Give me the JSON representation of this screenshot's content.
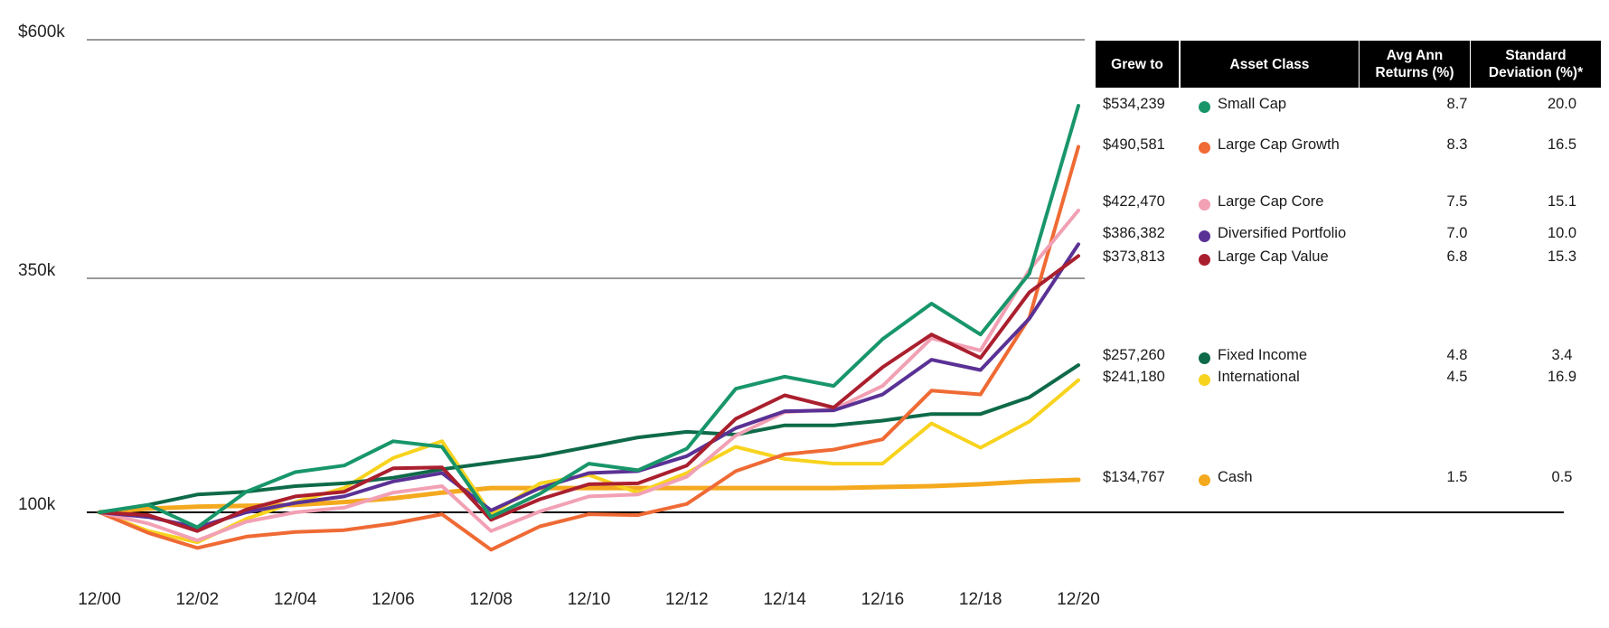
{
  "chart_data": {
    "type": "line",
    "y_tick_labels": [
      "$600k",
      "350k",
      "100k"
    ],
    "y_ticks": [
      600000,
      350000,
      100000
    ],
    "x_tick_labels": [
      "12/00",
      "12/02",
      "12/04",
      "12/06",
      "12/08",
      "12/10",
      "12/12",
      "12/14",
      "12/16",
      "12/18",
      "12/20"
    ],
    "x_range": [
      2000,
      2020
    ],
    "y_range": [
      50000,
      620000
    ],
    "series": [
      {
        "name": "Small Cap",
        "color": "#18966a",
        "grew_to": "$534,239",
        "avg_return": "8.7",
        "std_dev": "20.0",
        "points": [
          [
            2000,
            100000
          ],
          [
            2001,
            108000
          ],
          [
            2002,
            84000
          ],
          [
            2003,
            122000
          ],
          [
            2004,
            143000
          ],
          [
            2005,
            150000
          ],
          [
            2006,
            176000
          ],
          [
            2007,
            170000
          ],
          [
            2008,
            95000
          ],
          [
            2009,
            120000
          ],
          [
            2010,
            152000
          ],
          [
            2011,
            145000
          ],
          [
            2012,
            168000
          ],
          [
            2013,
            232000
          ],
          [
            2014,
            245000
          ],
          [
            2015,
            235000
          ],
          [
            2016,
            285000
          ],
          [
            2017,
            323000
          ],
          [
            2018,
            290000
          ],
          [
            2019,
            355000
          ],
          [
            2020,
            534239
          ]
        ]
      },
      {
        "name": "Large Cap Growth",
        "color": "#ef6a34",
        "grew_to": "$490,581",
        "avg_return": "8.3",
        "std_dev": "16.5",
        "points": [
          [
            2000,
            100000
          ],
          [
            2001,
            78000
          ],
          [
            2002,
            62000
          ],
          [
            2003,
            74000
          ],
          [
            2004,
            79000
          ],
          [
            2005,
            81000
          ],
          [
            2006,
            88000
          ],
          [
            2007,
            98000
          ],
          [
            2008,
            60000
          ],
          [
            2009,
            85000
          ],
          [
            2010,
            98000
          ],
          [
            2011,
            97000
          ],
          [
            2012,
            109000
          ],
          [
            2013,
            144000
          ],
          [
            2014,
            162000
          ],
          [
            2015,
            167000
          ],
          [
            2016,
            178000
          ],
          [
            2017,
            230000
          ],
          [
            2018,
            226000
          ],
          [
            2019,
            308000
          ],
          [
            2020,
            490581
          ]
        ]
      },
      {
        "name": "Large Cap Core",
        "color": "#f2a0b4",
        "grew_to": "$422,470",
        "avg_return": "7.5",
        "std_dev": "15.1",
        "points": [
          [
            2000,
            100000
          ],
          [
            2001,
            88000
          ],
          [
            2002,
            70000
          ],
          [
            2003,
            90000
          ],
          [
            2004,
            100000
          ],
          [
            2005,
            105000
          ],
          [
            2006,
            121000
          ],
          [
            2007,
            128000
          ],
          [
            2008,
            80000
          ],
          [
            2009,
            101000
          ],
          [
            2010,
            117000
          ],
          [
            2011,
            119000
          ],
          [
            2012,
            138000
          ],
          [
            2013,
            182000
          ],
          [
            2014,
            207000
          ],
          [
            2015,
            210000
          ],
          [
            2016,
            235000
          ],
          [
            2017,
            286000
          ],
          [
            2018,
            273000
          ],
          [
            2019,
            359000
          ],
          [
            2020,
            422470
          ]
        ]
      },
      {
        "name": "Diversified Portfolio",
        "color": "#5a3195",
        "grew_to": "$386,382",
        "avg_return": "7.0",
        "std_dev": "10.0",
        "points": [
          [
            2000,
            100000
          ],
          [
            2001,
            95000
          ],
          [
            2002,
            84000
          ],
          [
            2003,
            100000
          ],
          [
            2004,
            110000
          ],
          [
            2005,
            117000
          ],
          [
            2006,
            133000
          ],
          [
            2007,
            142000
          ],
          [
            2008,
            102000
          ],
          [
            2009,
            126000
          ],
          [
            2010,
            142000
          ],
          [
            2011,
            144000
          ],
          [
            2012,
            160000
          ],
          [
            2013,
            190000
          ],
          [
            2014,
            208000
          ],
          [
            2015,
            209000
          ],
          [
            2016,
            226000
          ],
          [
            2017,
            263000
          ],
          [
            2018,
            252000
          ],
          [
            2019,
            307000
          ],
          [
            2020,
            386382
          ]
        ]
      },
      {
        "name": "Large Cap Value",
        "color": "#aa1f2e",
        "grew_to": "$373,813",
        "avg_return": "6.8",
        "std_dev": "15.3",
        "points": [
          [
            2000,
            100000
          ],
          [
            2001,
            97000
          ],
          [
            2002,
            80000
          ],
          [
            2003,
            103000
          ],
          [
            2004,
            117000
          ],
          [
            2005,
            122000
          ],
          [
            2006,
            147000
          ],
          [
            2007,
            148000
          ],
          [
            2008,
            92000
          ],
          [
            2009,
            114000
          ],
          [
            2010,
            130000
          ],
          [
            2011,
            131000
          ],
          [
            2012,
            150000
          ],
          [
            2013,
            200000
          ],
          [
            2014,
            225000
          ],
          [
            2015,
            212000
          ],
          [
            2016,
            255000
          ],
          [
            2017,
            290000
          ],
          [
            2018,
            265000
          ],
          [
            2019,
            335000
          ],
          [
            2020,
            373813
          ]
        ]
      },
      {
        "name": "Fixed Income",
        "color": "#0e6a48",
        "grew_to": "$257,260",
        "avg_return": "4.8",
        "std_dev": "3.4",
        "points": [
          [
            2000,
            100000
          ],
          [
            2001,
            108000
          ],
          [
            2002,
            119000
          ],
          [
            2003,
            122000
          ],
          [
            2004,
            128000
          ],
          [
            2005,
            131000
          ],
          [
            2006,
            137000
          ],
          [
            2007,
            146000
          ],
          [
            2008,
            153000
          ],
          [
            2009,
            160000
          ],
          [
            2010,
            170000
          ],
          [
            2011,
            180000
          ],
          [
            2012,
            186000
          ],
          [
            2013,
            183000
          ],
          [
            2014,
            193000
          ],
          [
            2015,
            193000
          ],
          [
            2016,
            198000
          ],
          [
            2017,
            205000
          ],
          [
            2018,
            205000
          ],
          [
            2019,
            223000
          ],
          [
            2020,
            257260
          ]
        ]
      },
      {
        "name": "International",
        "color": "#f8d31e",
        "grew_to": "$241,180",
        "avg_return": "4.5",
        "std_dev": "16.9",
        "points": [
          [
            2000,
            100000
          ],
          [
            2001,
            80000
          ],
          [
            2002,
            68000
          ],
          [
            2003,
            93000
          ],
          [
            2004,
            111000
          ],
          [
            2005,
            126000
          ],
          [
            2006,
            158000
          ],
          [
            2007,
            176000
          ],
          [
            2008,
            98000
          ],
          [
            2009,
            131000
          ],
          [
            2010,
            140000
          ],
          [
            2011,
            121000
          ],
          [
            2012,
            142000
          ],
          [
            2013,
            170000
          ],
          [
            2014,
            157000
          ],
          [
            2015,
            152000
          ],
          [
            2016,
            152000
          ],
          [
            2017,
            195000
          ],
          [
            2018,
            169000
          ],
          [
            2019,
            197000
          ],
          [
            2020,
            241180
          ]
        ]
      },
      {
        "name": "Cash",
        "color": "#f4a91e",
        "grew_to": "$134,767",
        "avg_return": "1.5",
        "std_dev": "0.5",
        "points": [
          [
            2000,
            100000
          ],
          [
            2001,
            104000
          ],
          [
            2002,
            106000
          ],
          [
            2003,
            107000
          ],
          [
            2004,
            108000
          ],
          [
            2005,
            111000
          ],
          [
            2006,
            115000
          ],
          [
            2007,
            121000
          ],
          [
            2008,
            126000
          ],
          [
            2009,
            126000
          ],
          [
            2010,
            126000
          ],
          [
            2011,
            126000
          ],
          [
            2012,
            126000
          ],
          [
            2013,
            126000
          ],
          [
            2014,
            126000
          ],
          [
            2015,
            126000
          ],
          [
            2016,
            127000
          ],
          [
            2017,
            128000
          ],
          [
            2018,
            130000
          ],
          [
            2019,
            133000
          ],
          [
            2020,
            134767
          ]
        ]
      }
    ]
  },
  "table": {
    "headers": {
      "grew_to": "Grew to",
      "asset_class": "Asset Class",
      "avg_line1": "Avg Ann",
      "avg_line2": "Returns (%)",
      "sd_line1": "Standard",
      "sd_line2": "Deviation (%)*"
    }
  }
}
